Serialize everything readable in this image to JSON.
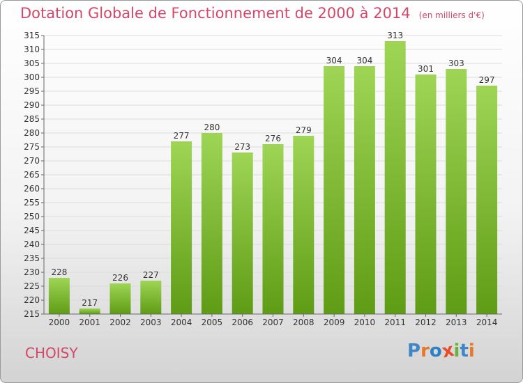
{
  "page": {
    "title": "Dotation Globale de Fonctionnement de 2000 à 2014",
    "unit": "(en milliers d'€)",
    "commune": "CHOISY",
    "logo": "Proxiti"
  },
  "colors": {
    "title": "#d2476a",
    "bar_top": "#9ed555",
    "bar_bottom": "#5f9c15",
    "grid": "#dcdcdc",
    "axis": "#666666",
    "logo": [
      "#3f86c8",
      "#e8772a",
      "#2f7fc7",
      "#e94e2a",
      "#6bb33a",
      "#3f86c8",
      "#e8772a"
    ]
  },
  "chart_data": {
    "type": "bar",
    "categories": [
      "2000",
      "2001",
      "2002",
      "2003",
      "2004",
      "2005",
      "2006",
      "2007",
      "2008",
      "2009",
      "2010",
      "2011",
      "2012",
      "2013",
      "2014"
    ],
    "values": [
      228,
      217,
      226,
      227,
      277,
      280,
      273,
      276,
      279,
      304,
      304,
      313,
      301,
      303,
      297
    ],
    "ylim": [
      215,
      315
    ],
    "ytick_step": 5,
    "grid": true,
    "legend": "none"
  }
}
